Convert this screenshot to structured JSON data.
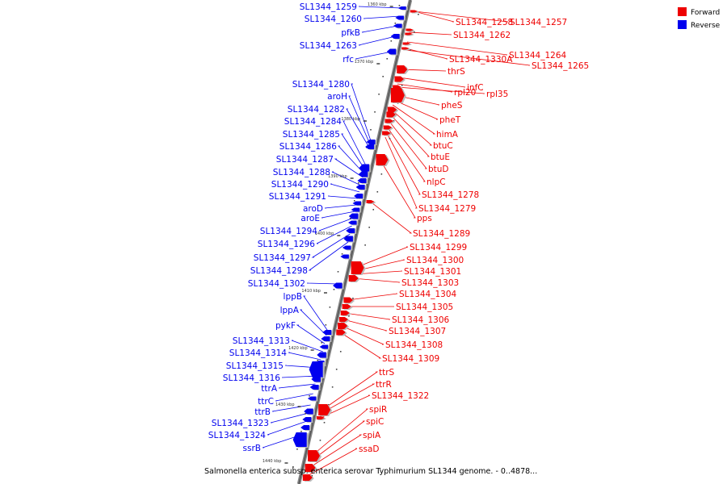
{
  "caption": "Salmonella enterica subsp. enterica serovar Typhimurium SL1344 genome. - 0..4878...",
  "legend": [
    {
      "label": "Forward",
      "color": "#ee0000"
    },
    {
      "label": "Reverse",
      "color": "#0000ee"
    }
  ],
  "ticks": [
    "1360 kbp",
    "1370 kbp",
    "1380 kbp",
    "1390 kbp",
    "1400 kbp",
    "1410 kbp",
    "1420 kbp",
    "1430 kbp",
    "1440 kbp"
  ],
  "reverse_genes": [
    "SL1344_1259",
    "SL1344_1260",
    "pfkB",
    "SL1344_1263",
    "rfc",
    "SL1344_1280",
    "aroH",
    "SL1344_1282",
    "SL1344_1284",
    "SL1344_1285",
    "SL1344_1286",
    "SL1344_1287",
    "SL1344_1288",
    "SL1344_1290",
    "SL1344_1291",
    "aroD",
    "aroE",
    "SL1344_1294",
    "SL1344_1296",
    "SL1344_1297",
    "SL1344_1298",
    "SL1344_1302",
    "lppB",
    "lppA",
    "pykF",
    "SL1344_1313",
    "SL1344_1314",
    "SL1344_1315",
    "SL1344_1316",
    "ttrA",
    "ttrC",
    "ttrB",
    "SL1344_1323",
    "SL1344_1324",
    "ssrB"
  ],
  "forward_genes": [
    "SL1344_1258",
    "SL1344_1257",
    "SL1344_1262",
    "SL1344_1264",
    "SL1344_1330A",
    "SL1344_1265",
    "thrS",
    "infC",
    "rpl20",
    "rpl35",
    "pheS",
    "pheT",
    "himA",
    "btuC",
    "btuE",
    "btuD",
    "nlpC",
    "SL1344_1278",
    "SL1344_1279",
    "pps",
    "SL1344_1289",
    "SL1344_1299",
    "SL1344_1300",
    "SL1344_1301",
    "SL1344_1303",
    "SL1344_1304",
    "SL1344_1305",
    "SL1344_1306",
    "SL1344_1307",
    "SL1344_1308",
    "SL1344_1309",
    "ttrS",
    "ttrR",
    "SL1344_1322",
    "spiR",
    "spiC",
    "spiA",
    "ssaD"
  ]
}
